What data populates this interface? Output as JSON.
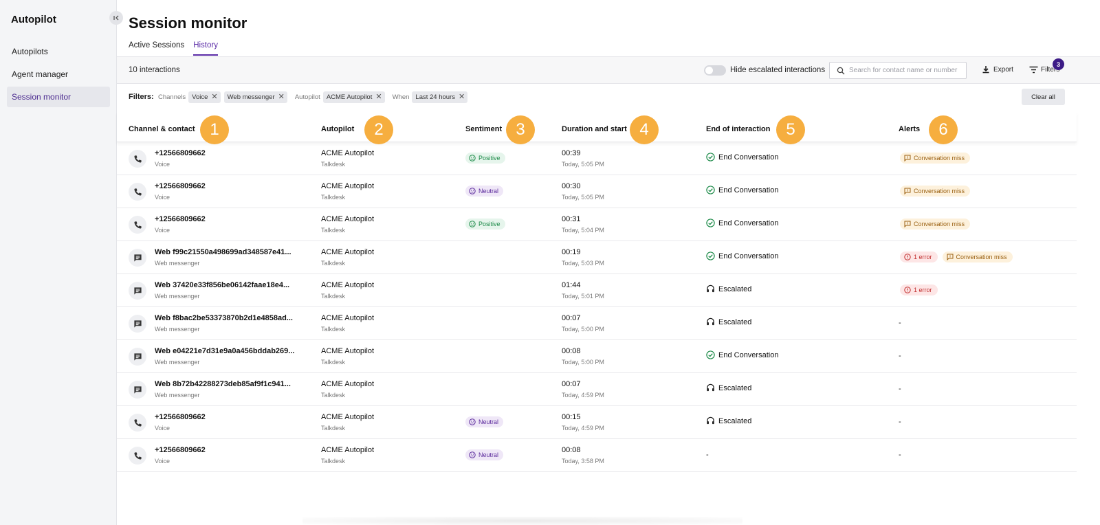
{
  "sidebar": {
    "title": "Autopilot",
    "items": [
      {
        "label": "Autopilots"
      },
      {
        "label": "Agent manager"
      },
      {
        "label": "Session monitor"
      }
    ]
  },
  "page": {
    "title": "Session monitor",
    "tabs": [
      {
        "label": "Active Sessions"
      },
      {
        "label": "History"
      }
    ],
    "active_tab": "History"
  },
  "toolbar": {
    "count": "10 interactions",
    "toggle_label": "Hide escalated interactions",
    "toggle_on": false,
    "search_placeholder": "Search for contact name or number",
    "export_label": "Export",
    "filters_label": "Filters",
    "filters_count": "3"
  },
  "filters": {
    "label": "Filters:",
    "groups": [
      {
        "category": "Channels",
        "chips": [
          "Voice",
          "Web messenger"
        ]
      },
      {
        "category": "Autopilot",
        "chips": [
          "ACME Autopilot"
        ]
      },
      {
        "category": "When",
        "chips": [
          "Last 24 hours"
        ]
      }
    ],
    "clear_all": "Clear all"
  },
  "table": {
    "columns": [
      {
        "label": "Channel & contact",
        "badge": "1"
      },
      {
        "label": "Autopilot",
        "badge": "2"
      },
      {
        "label": "Sentiment",
        "badge": "3"
      },
      {
        "label": "Duration and start",
        "badge": "4"
      },
      {
        "label": "End of interaction",
        "badge": "5"
      },
      {
        "label": "Alerts",
        "badge": "6"
      }
    ],
    "rows": [
      {
        "channel": "phone",
        "contact": "+12566809662",
        "channel_label": "Voice",
        "autopilot": "ACME Autopilot",
        "provider": "Talkdesk",
        "sentiment": "Positive",
        "duration": "00:39",
        "start": "Today, 5:05 PM",
        "end": "End Conversation",
        "end_type": "check",
        "alerts": [
          {
            "type": "miss",
            "label": "Conversation miss"
          }
        ]
      },
      {
        "channel": "phone",
        "contact": "+12566809662",
        "channel_label": "Voice",
        "autopilot": "ACME Autopilot",
        "provider": "Talkdesk",
        "sentiment": "Neutral",
        "duration": "00:30",
        "start": "Today, 5:05 PM",
        "end": "End Conversation",
        "end_type": "check",
        "alerts": [
          {
            "type": "miss",
            "label": "Conversation miss"
          }
        ]
      },
      {
        "channel": "phone",
        "contact": "+12566809662",
        "channel_label": "Voice",
        "autopilot": "ACME Autopilot",
        "provider": "Talkdesk",
        "sentiment": "Positive",
        "duration": "00:31",
        "start": "Today, 5:04 PM",
        "end": "End Conversation",
        "end_type": "check",
        "alerts": [
          {
            "type": "miss",
            "label": "Conversation miss"
          }
        ]
      },
      {
        "channel": "chat",
        "contact": "Web f99c21550a498699ad348587e41...",
        "channel_label": "Web messenger",
        "autopilot": "ACME Autopilot",
        "provider": "Talkdesk",
        "sentiment": "",
        "duration": "00:19",
        "start": "Today, 5:03 PM",
        "end": "End Conversation",
        "end_type": "check",
        "alerts": [
          {
            "type": "error",
            "label": "1 error"
          },
          {
            "type": "miss",
            "label": "Conversation miss"
          }
        ]
      },
      {
        "channel": "chat",
        "contact": "Web 37420e33f856be06142faae18e4...",
        "channel_label": "Web messenger",
        "autopilot": "ACME Autopilot",
        "provider": "Talkdesk",
        "sentiment": "",
        "duration": "01:44",
        "start": "Today, 5:01 PM",
        "end": "Escalated",
        "end_type": "headset",
        "alerts": [
          {
            "type": "error",
            "label": "1 error"
          }
        ]
      },
      {
        "channel": "chat",
        "contact": "Web f8bac2be53373870b2d1e4858ad...",
        "channel_label": "Web messenger",
        "autopilot": "ACME Autopilot",
        "provider": "Talkdesk",
        "sentiment": "",
        "duration": "00:07",
        "start": "Today, 5:00 PM",
        "end": "Escalated",
        "end_type": "headset",
        "alerts": []
      },
      {
        "channel": "chat",
        "contact": "Web e04221e7d31e9a0a456bddab269...",
        "channel_label": "Web messenger",
        "autopilot": "ACME Autopilot",
        "provider": "Talkdesk",
        "sentiment": "",
        "duration": "00:08",
        "start": "Today, 5:00 PM",
        "end": "End Conversation",
        "end_type": "check",
        "alerts": []
      },
      {
        "channel": "chat",
        "contact": "Web 8b72b42288273deb85af9f1c941...",
        "channel_label": "Web messenger",
        "autopilot": "ACME Autopilot",
        "provider": "Talkdesk",
        "sentiment": "",
        "duration": "00:07",
        "start": "Today, 4:59 PM",
        "end": "Escalated",
        "end_type": "headset",
        "alerts": []
      },
      {
        "channel": "phone",
        "contact": "+12566809662",
        "channel_label": "Voice",
        "autopilot": "ACME Autopilot",
        "provider": "Talkdesk",
        "sentiment": "Neutral",
        "duration": "00:15",
        "start": "Today, 4:59 PM",
        "end": "Escalated",
        "end_type": "headset",
        "alerts": []
      },
      {
        "channel": "phone",
        "contact": "+12566809662",
        "channel_label": "Voice",
        "autopilot": "ACME Autopilot",
        "provider": "Talkdesk",
        "sentiment": "Neutral",
        "duration": "00:08",
        "start": "Today, 3:58 PM",
        "end": "",
        "end_type": "none",
        "alerts": []
      }
    ],
    "empty_value": "-"
  },
  "colors": {
    "accent": "#5a2ba6",
    "badge": "#f6ae3f",
    "positive": "#1c8a48",
    "neutral": "#5b2a9c",
    "error": "#c23030",
    "warning": "#9a6010"
  }
}
